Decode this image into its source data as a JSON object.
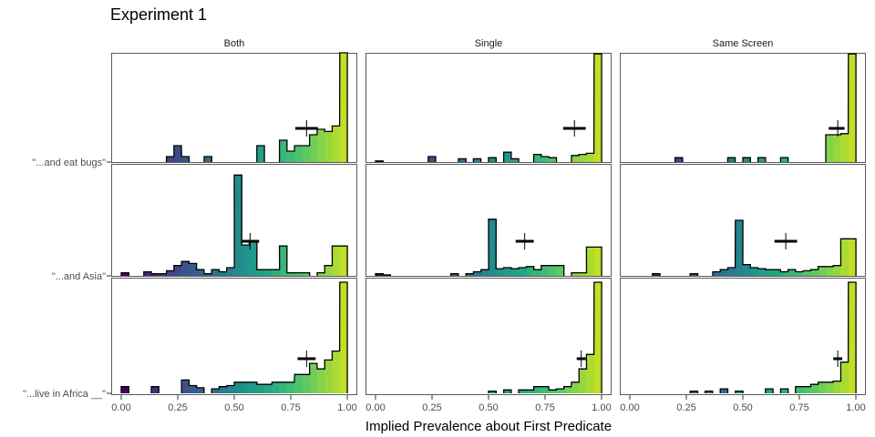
{
  "chart_data": {
    "type": "histogram",
    "title": "Experiment 1",
    "xlabel": "Implied Prevalence about First Predicate",
    "ylabel": "",
    "xlim": [
      0,
      1
    ],
    "x_ticks": [
      "0.00",
      "0.25",
      "0.50",
      "0.75",
      "1.00"
    ],
    "facets": [
      "Both",
      "Single",
      "Same Screen"
    ],
    "rows": [
      "\"...and eat bugs\"",
      "\"...and Asia\"",
      "\"...live in Africa __\""
    ],
    "bin_width": 0.0333,
    "color_scale": "viridis",
    "grid": false,
    "legend": "none",
    "panels": [
      {
        "facet": "Both",
        "row": "\"...and eat bugs\"",
        "bins": [
          [
            0.2,
            0.05
          ],
          [
            0.233,
            0.15
          ],
          [
            0.267,
            0.05
          ],
          [
            0.367,
            0.05
          ],
          [
            0.6,
            0.15
          ],
          [
            0.7,
            0.2
          ],
          [
            0.733,
            0.1
          ],
          [
            0.767,
            0.15
          ],
          [
            0.8,
            0.15
          ],
          [
            0.833,
            0.25
          ],
          [
            0.867,
            0.3
          ],
          [
            0.9,
            0.28
          ],
          [
            0.933,
            0.33
          ],
          [
            0.967,
            1.0
          ]
        ],
        "mean": 0.82,
        "ci": [
          0.77,
          0.87
        ]
      },
      {
        "facet": "Single",
        "row": "\"...and eat bugs\"",
        "bins": [
          [
            0.0,
            0.01
          ],
          [
            0.233,
            0.05
          ],
          [
            0.367,
            0.03
          ],
          [
            0.433,
            0.03
          ],
          [
            0.5,
            0.04
          ],
          [
            0.567,
            0.09
          ],
          [
            0.6,
            0.03
          ],
          [
            0.7,
            0.07
          ],
          [
            0.733,
            0.05
          ],
          [
            0.767,
            0.04
          ],
          [
            0.867,
            0.06
          ],
          [
            0.9,
            0.07
          ],
          [
            0.933,
            0.08
          ],
          [
            0.967,
            0.99
          ]
        ],
        "mean": 0.88,
        "ci": [
          0.83,
          0.93
        ]
      },
      {
        "facet": "Same Screen",
        "row": "\"...and eat bugs\"",
        "bins": [
          [
            0.2,
            0.04
          ],
          [
            0.433,
            0.04
          ],
          [
            0.5,
            0.04
          ],
          [
            0.567,
            0.04
          ],
          [
            0.667,
            0.04
          ],
          [
            0.867,
            0.25
          ],
          [
            0.9,
            0.25
          ],
          [
            0.933,
            0.26
          ],
          [
            0.967,
            0.99
          ]
        ],
        "mean": 0.92,
        "ci": [
          0.88,
          0.95
        ]
      },
      {
        "facet": "Both",
        "row": "\"...and Asia\"",
        "bins": [
          [
            0.0,
            0.03
          ],
          [
            0.1,
            0.04
          ],
          [
            0.133,
            0.02
          ],
          [
            0.167,
            0.02
          ],
          [
            0.2,
            0.05
          ],
          [
            0.233,
            0.1
          ],
          [
            0.267,
            0.14
          ],
          [
            0.3,
            0.12
          ],
          [
            0.333,
            0.06
          ],
          [
            0.367,
            0.02
          ],
          [
            0.4,
            0.06
          ],
          [
            0.433,
            0.04
          ],
          [
            0.467,
            0.08
          ],
          [
            0.5,
            0.98
          ],
          [
            0.533,
            0.3
          ],
          [
            0.567,
            0.34
          ],
          [
            0.6,
            0.06
          ],
          [
            0.633,
            0.06
          ],
          [
            0.667,
            0.06
          ],
          [
            0.7,
            0.29
          ],
          [
            0.733,
            0.03
          ],
          [
            0.767,
            0.03
          ],
          [
            0.8,
            0.03
          ],
          [
            0.867,
            0.03
          ],
          [
            0.9,
            0.1
          ],
          [
            0.933,
            0.29
          ],
          [
            0.967,
            0.29
          ]
        ],
        "mean": 0.57,
        "ci": [
          0.53,
          0.61
        ]
      },
      {
        "facet": "Single",
        "row": "\"...and Asia\"",
        "bins": [
          [
            0.0,
            0.02
          ],
          [
            0.033,
            0.01
          ],
          [
            0.333,
            0.02
          ],
          [
            0.4,
            0.02
          ],
          [
            0.433,
            0.04
          ],
          [
            0.467,
            0.06
          ],
          [
            0.5,
            0.55
          ],
          [
            0.533,
            0.07
          ],
          [
            0.567,
            0.08
          ],
          [
            0.6,
            0.07
          ],
          [
            0.633,
            0.08
          ],
          [
            0.667,
            0.09
          ],
          [
            0.7,
            0.06
          ],
          [
            0.733,
            0.1
          ],
          [
            0.767,
            0.1
          ],
          [
            0.8,
            0.1
          ],
          [
            0.867,
            0.03
          ],
          [
            0.9,
            0.03
          ],
          [
            0.933,
            0.28
          ],
          [
            0.967,
            0.28
          ]
        ],
        "mean": 0.66,
        "ci": [
          0.62,
          0.7
        ]
      },
      {
        "facet": "Same Screen",
        "row": "\"...and Asia\"",
        "bins": [
          [
            0.1,
            0.02
          ],
          [
            0.267,
            0.02
          ],
          [
            0.367,
            0.04
          ],
          [
            0.4,
            0.06
          ],
          [
            0.433,
            0.08
          ],
          [
            0.467,
            0.54
          ],
          [
            0.5,
            0.11
          ],
          [
            0.533,
            0.08
          ],
          [
            0.567,
            0.07
          ],
          [
            0.6,
            0.06
          ],
          [
            0.633,
            0.06
          ],
          [
            0.667,
            0.04
          ],
          [
            0.7,
            0.06
          ],
          [
            0.733,
            0.04
          ],
          [
            0.767,
            0.05
          ],
          [
            0.8,
            0.06
          ],
          [
            0.833,
            0.09
          ],
          [
            0.867,
            0.09
          ],
          [
            0.9,
            0.1
          ],
          [
            0.933,
            0.36
          ],
          [
            0.967,
            0.36
          ]
        ],
        "mean": 0.69,
        "ci": [
          0.64,
          0.74
        ]
      },
      {
        "facet": "Both",
        "row": "\"...live in Africa __\"",
        "bins": [
          [
            0.0,
            0.06
          ],
          [
            0.133,
            0.06
          ],
          [
            0.267,
            0.12
          ],
          [
            0.3,
            0.07
          ],
          [
            0.333,
            0.05
          ],
          [
            0.4,
            0.04
          ],
          [
            0.433,
            0.06
          ],
          [
            0.467,
            0.07
          ],
          [
            0.5,
            0.1
          ],
          [
            0.533,
            0.1
          ],
          [
            0.567,
            0.1
          ],
          [
            0.6,
            0.08
          ],
          [
            0.633,
            0.08
          ],
          [
            0.667,
            0.1
          ],
          [
            0.7,
            0.1
          ],
          [
            0.733,
            0.1
          ],
          [
            0.767,
            0.17
          ],
          [
            0.8,
            0.17
          ],
          [
            0.833,
            0.27
          ],
          [
            0.867,
            0.22
          ],
          [
            0.9,
            0.3
          ],
          [
            0.933,
            0.38
          ],
          [
            0.967,
            1.0
          ]
        ],
        "mean": 0.82,
        "ci": [
          0.78,
          0.86
        ]
      },
      {
        "facet": "Single",
        "row": "\"...live in Africa __\"",
        "bins": [
          [
            0.5,
            0.02
          ],
          [
            0.567,
            0.03
          ],
          [
            0.633,
            0.03
          ],
          [
            0.667,
            0.03
          ],
          [
            0.7,
            0.06
          ],
          [
            0.733,
            0.06
          ],
          [
            0.767,
            0.03
          ],
          [
            0.8,
            0.04
          ],
          [
            0.833,
            0.06
          ],
          [
            0.867,
            0.1
          ],
          [
            0.9,
            0.22
          ],
          [
            0.933,
            0.35
          ],
          [
            0.967,
            1.0
          ]
        ],
        "mean": 0.91,
        "ci": [
          0.89,
          0.93
        ]
      },
      {
        "facet": "Same Screen",
        "row": "\"...live in Africa __\"",
        "bins": [
          [
            0.267,
            0.02
          ],
          [
            0.333,
            0.02
          ],
          [
            0.4,
            0.04
          ],
          [
            0.467,
            0.02
          ],
          [
            0.6,
            0.04
          ],
          [
            0.667,
            0.04
          ],
          [
            0.733,
            0.06
          ],
          [
            0.767,
            0.06
          ],
          [
            0.8,
            0.08
          ],
          [
            0.833,
            0.1
          ],
          [
            0.867,
            0.1
          ],
          [
            0.9,
            0.11
          ],
          [
            0.933,
            0.28
          ],
          [
            0.967,
            1.0
          ]
        ],
        "mean": 0.92,
        "ci": [
          0.9,
          0.94
        ]
      }
    ]
  }
}
